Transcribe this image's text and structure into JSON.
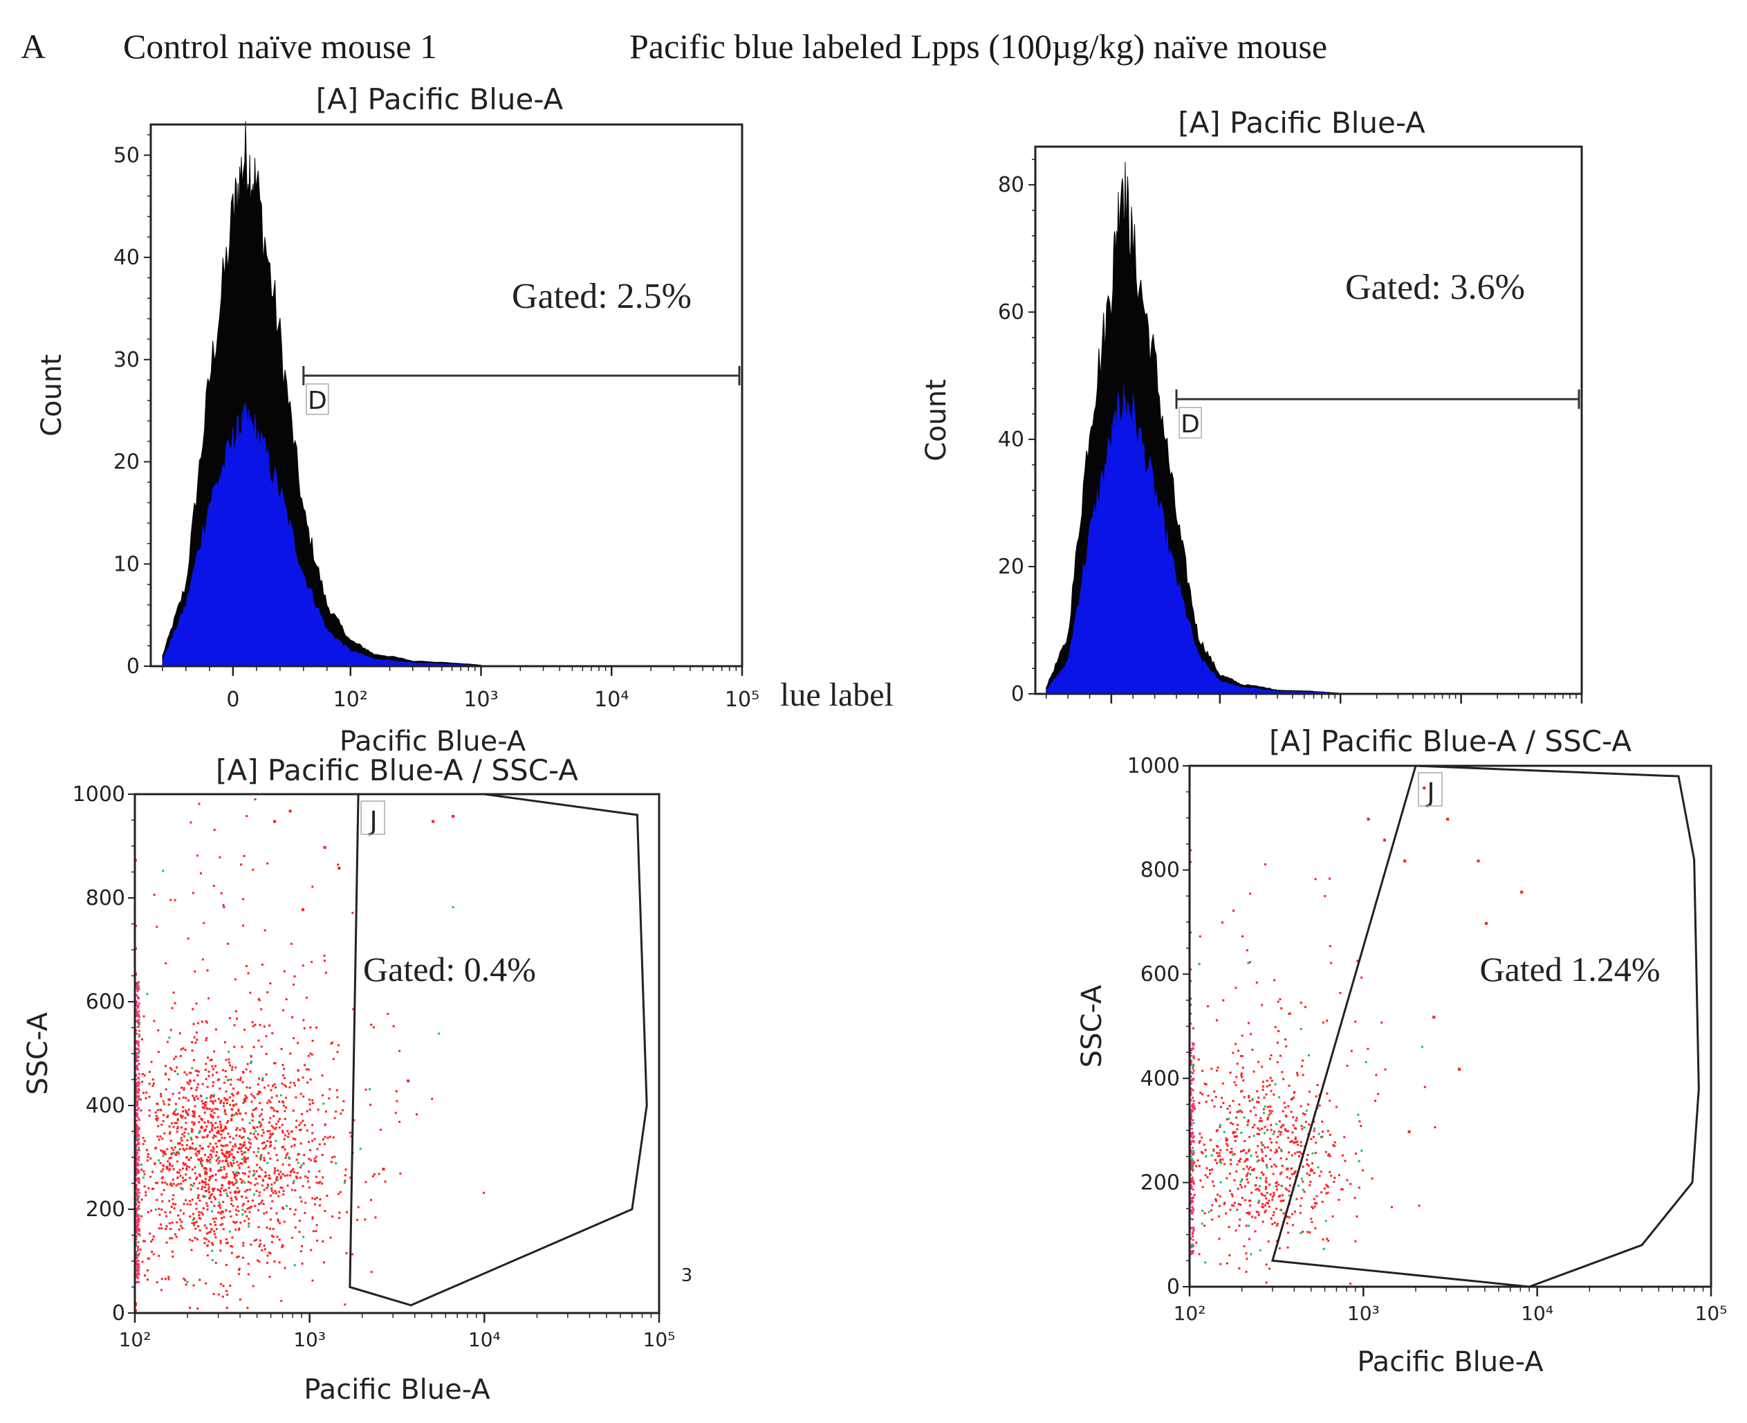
{
  "figure": {
    "panel_letter": "A",
    "left_column_title": "Control naïve mouse 1",
    "right_column_title": "Pacific blue labeled Lpps (100µg/kg) naïve mouse",
    "overlap_fragment": "lue label",
    "stray_char": "3"
  },
  "colors": {
    "fill_blue": "#0a14e6",
    "fill_black": "#050505",
    "dots_red": "#ff2020",
    "dots_green": "#10c060",
    "frame": "#222222"
  },
  "chart_data": [
    {
      "id": "hist-control",
      "type": "area",
      "title": "[A] Pacific Blue-A",
      "xlabel": "Pacific Blue-A",
      "ylabel": "Count",
      "x_scale": "biexponential",
      "xticks": [
        "0",
        "10²",
        "10³",
        "10⁴",
        "10⁵"
      ],
      "yticks": [
        0,
        10,
        20,
        30,
        40,
        50
      ],
      "ylim": [
        0,
        53
      ],
      "gate": {
        "name": "D",
        "x_from": 60,
        "x_to": 100000,
        "label": "Gated: 2.5%",
        "percent": 2.5
      },
      "series": [
        {
          "color": "black",
          "x": [
            -60,
            -40,
            -20,
            0,
            10,
            20,
            40,
            60,
            80,
            100,
            150,
            300,
            1000
          ],
          "y": [
            1,
            8,
            28,
            44,
            50,
            47,
            32,
            15,
            6,
            2.5,
            1.2,
            0.5,
            0.1
          ]
        },
        {
          "color": "blue",
          "x": [
            -60,
            -40,
            -20,
            0,
            10,
            20,
            40,
            60,
            80,
            100,
            150,
            300,
            1000
          ],
          "y": [
            0.5,
            6,
            16,
            22,
            24,
            23,
            17,
            9,
            3.5,
            1.5,
            0.7,
            0.3,
            0.05
          ]
        }
      ]
    },
    {
      "id": "hist-lpps",
      "type": "area",
      "title": "[A] Pacific Blue-A",
      "xlabel": "",
      "ylabel": "Count",
      "x_scale": "biexponential",
      "xticks": [],
      "yticks": [
        0,
        20,
        40,
        60,
        80
      ],
      "ylim": [
        0,
        86
      ],
      "gate": {
        "name": "D",
        "x_from": 60,
        "x_to": 100000,
        "label": "Gated: 3.6%",
        "percent": 3.6
      },
      "series": [
        {
          "color": "black",
          "x": [
            -60,
            -40,
            -20,
            0,
            10,
            20,
            40,
            60,
            80,
            100,
            150,
            300,
            1000
          ],
          "y": [
            1,
            9,
            42,
            64,
            82,
            70,
            52,
            28,
            9,
            3,
            1.5,
            0.6,
            0.1
          ]
        },
        {
          "color": "blue",
          "x": [
            -60,
            -40,
            -20,
            0,
            10,
            20,
            40,
            60,
            80,
            100,
            150,
            300,
            1000
          ],
          "y": [
            0.5,
            5,
            25,
            40,
            46,
            44,
            32,
            18,
            6,
            2,
            1,
            0.4,
            0.05
          ]
        }
      ]
    },
    {
      "id": "scatter-control",
      "type": "scatter",
      "title": "[A] Pacific Blue-A / SSC-A",
      "xlabel": "Pacific Blue-A",
      "ylabel": "SSC-A",
      "x_scale": "log",
      "xlim": [
        100,
        100000
      ],
      "ylim": [
        0,
        1000
      ],
      "xticks": [
        "10²",
        "10³",
        "10⁴",
        "10⁵"
      ],
      "yticks": [
        0,
        200,
        400,
        600,
        800,
        1000
      ],
      "gate": {
        "name": "J",
        "label": "Gated: 0.4%",
        "percent": 0.4,
        "polygon": [
          [
            1900,
            1000
          ],
          [
            10000,
            1000
          ],
          [
            75000,
            960
          ],
          [
            85000,
            400
          ],
          [
            70000,
            200
          ],
          [
            3800,
            15
          ],
          [
            1700,
            50
          ],
          [
            1900,
            1000
          ]
        ]
      },
      "clusters": [
        {
          "x_center": 300,
          "y_center": 300,
          "x_spread_log": 0.32,
          "y_spread": 110,
          "n_red": 1400,
          "n_green": 70
        },
        {
          "x_center": 420,
          "y_center": 480,
          "x_spread_log": 0.5,
          "y_spread": 300,
          "n_red": 220,
          "n_green": 14
        }
      ],
      "edge_events": {
        "x": 100,
        "y_min": 60,
        "y_max": 640,
        "n": 260
      },
      "outliers": [
        [
          620,
          950
        ],
        [
          760,
          970
        ],
        [
          1200,
          900
        ],
        [
          1450,
          860
        ],
        [
          900,
          780
        ],
        [
          5000,
          950
        ],
        [
          6500,
          960
        ],
        [
          3600,
          450
        ],
        [
          2600,
          280
        ]
      ]
    },
    {
      "id": "scatter-lpps",
      "type": "scatter",
      "title": "[A] Pacific Blue-A / SSC-A",
      "xlabel": "Pacific Blue-A",
      "ylabel": "SSC-A",
      "x_scale": "log",
      "xlim": [
        100,
        100000
      ],
      "ylim": [
        0,
        1000
      ],
      "xticks": [
        "10²",
        "10³",
        "10⁴",
        "10⁵"
      ],
      "yticks": [
        0,
        200,
        400,
        600,
        800,
        1000
      ],
      "gate": {
        "name": "J",
        "label": "Gated 1.24%",
        "percent": 1.24,
        "polygon": [
          [
            2000,
            1000
          ],
          [
            65000,
            980
          ],
          [
            80000,
            820
          ],
          [
            85000,
            380
          ],
          [
            78000,
            200
          ],
          [
            40000,
            80
          ],
          [
            9000,
            0
          ],
          [
            300,
            50
          ],
          [
            2000,
            1000
          ]
        ]
      },
      "clusters": [
        {
          "x_center": 250,
          "y_center": 250,
          "x_spread_log": 0.23,
          "y_spread": 95,
          "n_red": 560,
          "n_green": 60
        },
        {
          "x_center": 320,
          "y_center": 420,
          "x_spread_log": 0.35,
          "y_spread": 190,
          "n_red": 110,
          "n_green": 10
        }
      ],
      "edge_events": {
        "x": 100,
        "y_min": 60,
        "y_max": 480,
        "n": 140
      },
      "outliers": [
        [
          1050,
          900
        ],
        [
          1300,
          860
        ],
        [
          1700,
          820
        ],
        [
          2200,
          960
        ],
        [
          3000,
          900
        ],
        [
          4500,
          820
        ],
        [
          8000,
          760
        ],
        [
          2500,
          520
        ],
        [
          3500,
          420
        ],
        [
          1800,
          300
        ],
        [
          5000,
          700
        ]
      ]
    }
  ]
}
